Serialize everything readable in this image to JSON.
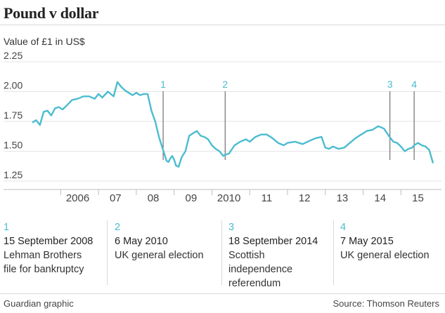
{
  "title": "Pound v dollar",
  "subtitle": "Value of £1 in US$",
  "credit": "Guardian graphic",
  "source": "Source: Thomson Reuters",
  "annotations": [
    {
      "num": "1",
      "date": "15 September 2008",
      "label": "Lehman Brothers file for bankruptcy",
      "lines": [
        "Lehman Brothers",
        "file for bankruptcy"
      ]
    },
    {
      "num": "2",
      "date": "6 May 2010",
      "label": "UK general election",
      "lines": [
        "UK general election"
      ]
    },
    {
      "num": "3",
      "date": "18 September 2014",
      "label": "Scottish independence referendum",
      "lines": [
        "Scottish",
        "independence",
        "referendum"
      ]
    },
    {
      "num": "4",
      "date": "7 May 2015",
      "label": "UK general election",
      "lines": [
        "UK general election"
      ]
    }
  ],
  "colors": {
    "line": "#4bbcd0",
    "marker": "#4bbcd0",
    "grid": "#e5e5e5",
    "axis": "#bdbdbd"
  },
  "chart_data": {
    "type": "line",
    "title": "Pound v dollar",
    "ylabel": "Value of £1 in US$",
    "xlabel": "",
    "ylim": [
      1.25,
      2.25
    ],
    "yticks": [
      1.25,
      1.5,
      1.75,
      2.0,
      2.25
    ],
    "ytick_labels": [
      "1.25",
      "1.50",
      "1.75",
      "2.00",
      "2.25"
    ],
    "xlim": [
      2005.25,
      2015.85
    ],
    "xticks": [
      2006,
      2007,
      2008,
      2009,
      2010,
      2011,
      2012,
      2013,
      2014,
      2015
    ],
    "xtick_labels": [
      "2006",
      "07",
      "08",
      "09",
      "2010",
      "11",
      "12",
      "13",
      "14",
      "15"
    ],
    "grid": true,
    "series": [
      {
        "x": [
          2005.25,
          2005.35,
          2005.45,
          2005.55,
          2005.65,
          2005.75,
          2005.85,
          2005.95,
          2006.05,
          2006.15,
          2006.3,
          2006.45,
          2006.6,
          2006.75,
          2006.9,
          2007.0,
          2007.1,
          2007.25,
          2007.4,
          2007.5,
          2007.6,
          2007.7,
          2007.8,
          2007.9,
          2008.0,
          2008.1,
          2008.2,
          2008.3,
          2008.4,
          2008.5,
          2008.6,
          2008.7,
          2008.75,
          2008.8,
          2008.85,
          2008.9,
          2008.95,
          2009.0,
          2009.05,
          2009.12,
          2009.2,
          2009.3,
          2009.4,
          2009.5,
          2009.6,
          2009.7,
          2009.8,
          2009.9,
          2010.0,
          2010.1,
          2010.2,
          2010.3,
          2010.35,
          2010.45,
          2010.6,
          2010.75,
          2010.9,
          2011.0,
          2011.15,
          2011.3,
          2011.45,
          2011.6,
          2011.75,
          2011.9,
          2012.0,
          2012.2,
          2012.4,
          2012.6,
          2012.75,
          2012.9,
          2013.0,
          2013.1,
          2013.2,
          2013.35,
          2013.5,
          2013.65,
          2013.8,
          2013.9,
          2014.0,
          2014.1,
          2014.25,
          2014.4,
          2014.55,
          2014.7,
          2014.8,
          2014.9,
          2015.0,
          2015.1,
          2015.2,
          2015.3,
          2015.35,
          2015.45,
          2015.55,
          2015.65,
          2015.75,
          2015.85
        ],
        "y": [
          1.74,
          1.76,
          1.72,
          1.83,
          1.84,
          1.8,
          1.86,
          1.87,
          1.85,
          1.88,
          1.93,
          1.94,
          1.96,
          1.96,
          1.94,
          1.98,
          1.95,
          2.0,
          1.96,
          2.08,
          2.04,
          2.01,
          1.99,
          1.97,
          1.99,
          1.97,
          1.98,
          1.98,
          1.84,
          1.75,
          1.62,
          1.52,
          1.47,
          1.42,
          1.41,
          1.44,
          1.46,
          1.43,
          1.38,
          1.37,
          1.45,
          1.5,
          1.63,
          1.65,
          1.67,
          1.63,
          1.62,
          1.6,
          1.55,
          1.52,
          1.5,
          1.46,
          1.47,
          1.48,
          1.55,
          1.58,
          1.6,
          1.58,
          1.62,
          1.64,
          1.64,
          1.61,
          1.57,
          1.55,
          1.57,
          1.58,
          1.56,
          1.59,
          1.61,
          1.62,
          1.53,
          1.52,
          1.54,
          1.52,
          1.53,
          1.57,
          1.61,
          1.63,
          1.65,
          1.67,
          1.68,
          1.71,
          1.69,
          1.62,
          1.58,
          1.57,
          1.54,
          1.5,
          1.52,
          1.53,
          1.55,
          1.57,
          1.55,
          1.54,
          1.51,
          1.4
        ]
      }
    ],
    "markers": [
      {
        "label": "1",
        "x": 2008.71
      },
      {
        "label": "2",
        "x": 2010.35
      },
      {
        "label": "3",
        "x": 2014.71
      },
      {
        "label": "4",
        "x": 2015.35
      }
    ]
  }
}
